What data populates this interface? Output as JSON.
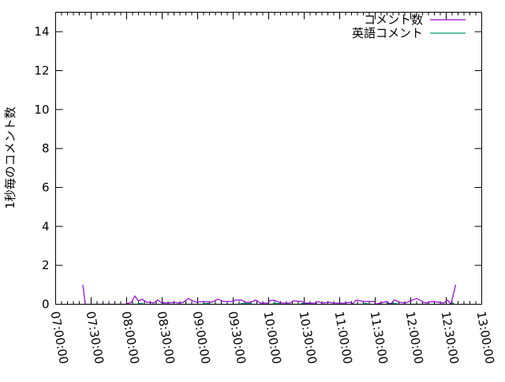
{
  "chart_data": {
    "type": "line",
    "title": "",
    "xlabel": "",
    "ylabel": "1秒毎のコメント数",
    "xlim": [
      "07:00:00",
      "13:00:00"
    ],
    "ylim": [
      0,
      15
    ],
    "x_ticks": [
      "07:00:00",
      "07:30:00",
      "08:00:00",
      "08:30:00",
      "09:00:00",
      "09:30:00",
      "10:00:00",
      "10:30:00",
      "11:00:00",
      "11:30:00",
      "12:00:00",
      "12:30:00",
      "13:00:00"
    ],
    "y_ticks": [
      0,
      2,
      4,
      6,
      8,
      10,
      12,
      14
    ],
    "grid": false,
    "legend_placement": "top-right",
    "series": [
      {
        "name": "コメント数",
        "color": "#9400d3",
        "points": [
          [
            "07:23:00",
            1.0
          ],
          [
            "07:25:00",
            0
          ],
          [
            "07:59:00",
            0
          ],
          [
            "08:04:00",
            0.1
          ],
          [
            "08:07:00",
            0.42
          ],
          [
            "08:10:00",
            0.17
          ],
          [
            "08:13:00",
            0.26
          ],
          [
            "08:17:00",
            0.1
          ],
          [
            "08:20:00",
            0.1
          ],
          [
            "08:23:00",
            0.06
          ],
          [
            "08:26:00",
            0.22
          ],
          [
            "08:30:00",
            0.06
          ],
          [
            "08:31:00",
            0.1
          ],
          [
            "08:34:00",
            0.06
          ],
          [
            "08:41:00",
            0.1
          ],
          [
            "08:44:00",
            0.06
          ],
          [
            "08:48:00",
            0.1
          ],
          [
            "08:52:00",
            0.3
          ],
          [
            "08:55:00",
            0.2
          ],
          [
            "08:59:00",
            0.1
          ],
          [
            "09:05:00",
            0.14
          ],
          [
            "09:12:00",
            0.1
          ],
          [
            "09:17:00",
            0.26
          ],
          [
            "09:22:00",
            0.14
          ],
          [
            "09:30:00",
            0.14
          ],
          [
            "09:32:00",
            0.22
          ],
          [
            "09:37:00",
            0.22
          ],
          [
            "09:40:00",
            0.1
          ],
          [
            "09:45:00",
            0.1
          ],
          [
            "09:49:00",
            0.22
          ],
          [
            "09:53:00",
            0.06
          ],
          [
            "09:59:00",
            0.06
          ],
          [
            "10:01:00",
            0.18
          ],
          [
            "10:04:00",
            0.22
          ],
          [
            "10:09:00",
            0.1
          ],
          [
            "10:12:00",
            0.06
          ],
          [
            "10:18:00",
            0.06
          ],
          [
            "10:21:00",
            0.18
          ],
          [
            "10:28:00",
            0.14
          ],
          [
            "10:30:00",
            0.06
          ],
          [
            "10:40:00",
            0.06
          ],
          [
            "10:42:00",
            0.14
          ],
          [
            "10:45:00",
            0.06
          ],
          [
            "10:51:00",
            0.1
          ],
          [
            "10:55:00",
            0.06
          ],
          [
            "11:04:00",
            0.06
          ],
          [
            "11:09:00",
            0.1
          ],
          [
            "11:11:00",
            0.02
          ],
          [
            "11:14:00",
            0.22
          ],
          [
            "11:20:00",
            0.14
          ],
          [
            "11:29:00",
            0.14
          ],
          [
            "11:31:00",
            0
          ],
          [
            "11:34:00",
            0.06
          ],
          [
            "11:40:00",
            0.14
          ],
          [
            "11:43:00",
            0
          ],
          [
            "11:46:00",
            0.22
          ],
          [
            "11:51:00",
            0.1
          ],
          [
            "11:55:00",
            0.06
          ],
          [
            "12:00:00",
            0.18
          ],
          [
            "12:05:00",
            0.3
          ],
          [
            "12:11:00",
            0.1
          ],
          [
            "12:13:00",
            0.06
          ],
          [
            "12:18:00",
            0.14
          ],
          [
            "12:24:00",
            0.1
          ],
          [
            "12:28:00",
            0.06
          ],
          [
            "12:31:00",
            0.22
          ],
          [
            "12:34:00",
            0
          ],
          [
            "12:38:00",
            1.0
          ]
        ]
      },
      {
        "name": "英語コメント",
        "color": "#009e73",
        "points": [
          [
            "07:59:00",
            0
          ],
          [
            "08:09:00",
            0
          ],
          [
            "08:10:00",
            0.04
          ],
          [
            "08:13:00",
            0.04
          ],
          [
            "08:14:00",
            0
          ],
          [
            "08:30:00",
            0
          ],
          [
            "08:31:00",
            0.04
          ],
          [
            "08:33:00",
            0
          ],
          [
            "09:04:00",
            0
          ],
          [
            "09:05:00",
            0.04
          ],
          [
            "09:09:00",
            0.04
          ],
          [
            "09:10:00",
            0
          ],
          [
            "09:36:00",
            0
          ],
          [
            "09:37:00",
            0.04
          ],
          [
            "09:45:00",
            0.04
          ],
          [
            "09:46:00",
            0
          ],
          [
            "10:03:00",
            0
          ],
          [
            "10:04:00",
            0.04
          ],
          [
            "10:09:00",
            0.04
          ],
          [
            "10:10:00",
            0
          ],
          [
            "10:27:00",
            0
          ],
          [
            "10:28:00",
            0.04
          ],
          [
            "10:34:00",
            0.04
          ],
          [
            "10:35:00",
            0
          ],
          [
            "11:19:00",
            0
          ],
          [
            "11:20:00",
            0.04
          ],
          [
            "11:23:00",
            0.04
          ],
          [
            "11:24:00",
            0
          ],
          [
            "11:39:00",
            0
          ],
          [
            "11:40:00",
            0.04
          ],
          [
            "11:48:00",
            0.04
          ],
          [
            "11:49:00",
            0
          ],
          [
            "12:33:00",
            0
          ],
          [
            "12:34:00",
            0.04
          ],
          [
            "12:36:00",
            0.04
          ],
          [
            "12:37:00",
            0
          ]
        ]
      }
    ]
  }
}
